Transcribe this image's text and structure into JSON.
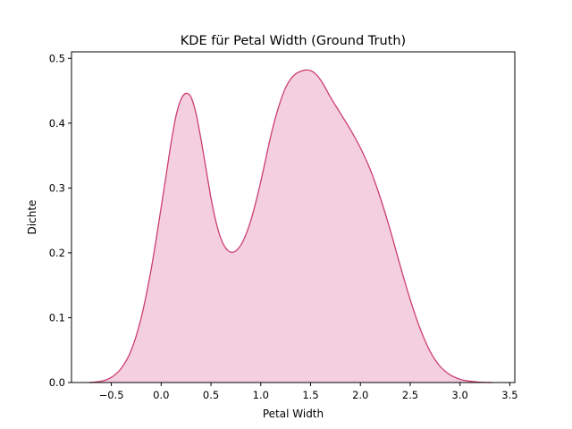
{
  "chart_data": {
    "type": "area",
    "title": "KDE für Petal Width (Ground Truth)",
    "xlabel": "Petal Width",
    "ylabel": "Dichte",
    "xlim": [
      -0.9,
      3.55
    ],
    "ylim": [
      0,
      0.51
    ],
    "xticks": [
      -0.5,
      0.0,
      0.5,
      1.0,
      1.5,
      2.0,
      2.5,
      3.0,
      3.5
    ],
    "xtick_labels": [
      "−0.5",
      "0.0",
      "0.5",
      "1.0",
      "1.5",
      "2.0",
      "2.5",
      "3.0",
      "3.5"
    ],
    "yticks": [
      0.0,
      0.1,
      0.2,
      0.3,
      0.4,
      0.5
    ],
    "ytick_labels": [
      "0.0",
      "0.1",
      "0.2",
      "0.3",
      "0.4",
      "0.5"
    ],
    "grid": false,
    "line_color": "#cc3d73",
    "fill_color": "#f4d0df",
    "series": [
      {
        "x": [
          -0.72,
          -0.6,
          -0.5,
          -0.4,
          -0.3,
          -0.2,
          -0.1,
          0.0,
          0.05,
          0.1,
          0.15,
          0.2,
          0.25,
          0.3,
          0.35,
          0.4,
          0.45,
          0.5,
          0.55,
          0.6,
          0.65,
          0.7,
          0.75,
          0.8,
          0.85,
          0.9,
          0.95,
          1.0,
          1.05,
          1.1,
          1.15,
          1.2,
          1.25,
          1.3,
          1.35,
          1.4,
          1.45,
          1.5,
          1.55,
          1.6,
          1.65,
          1.7,
          1.8,
          1.9,
          2.0,
          2.1,
          2.2,
          2.3,
          2.4,
          2.5,
          2.6,
          2.7,
          2.8,
          2.9,
          3.0,
          3.1,
          3.2,
          3.32
        ],
        "y": [
          0.0,
          0.002,
          0.008,
          0.022,
          0.05,
          0.1,
          0.175,
          0.27,
          0.32,
          0.37,
          0.412,
          0.437,
          0.446,
          0.44,
          0.415,
          0.375,
          0.33,
          0.285,
          0.248,
          0.222,
          0.207,
          0.201,
          0.203,
          0.212,
          0.228,
          0.25,
          0.278,
          0.31,
          0.345,
          0.38,
          0.41,
          0.435,
          0.455,
          0.468,
          0.476,
          0.48,
          0.482,
          0.481,
          0.476,
          0.467,
          0.454,
          0.44,
          0.415,
          0.39,
          0.362,
          0.328,
          0.285,
          0.235,
          0.18,
          0.128,
          0.083,
          0.048,
          0.025,
          0.012,
          0.005,
          0.002,
          0.0005,
          0.0
        ]
      }
    ]
  }
}
